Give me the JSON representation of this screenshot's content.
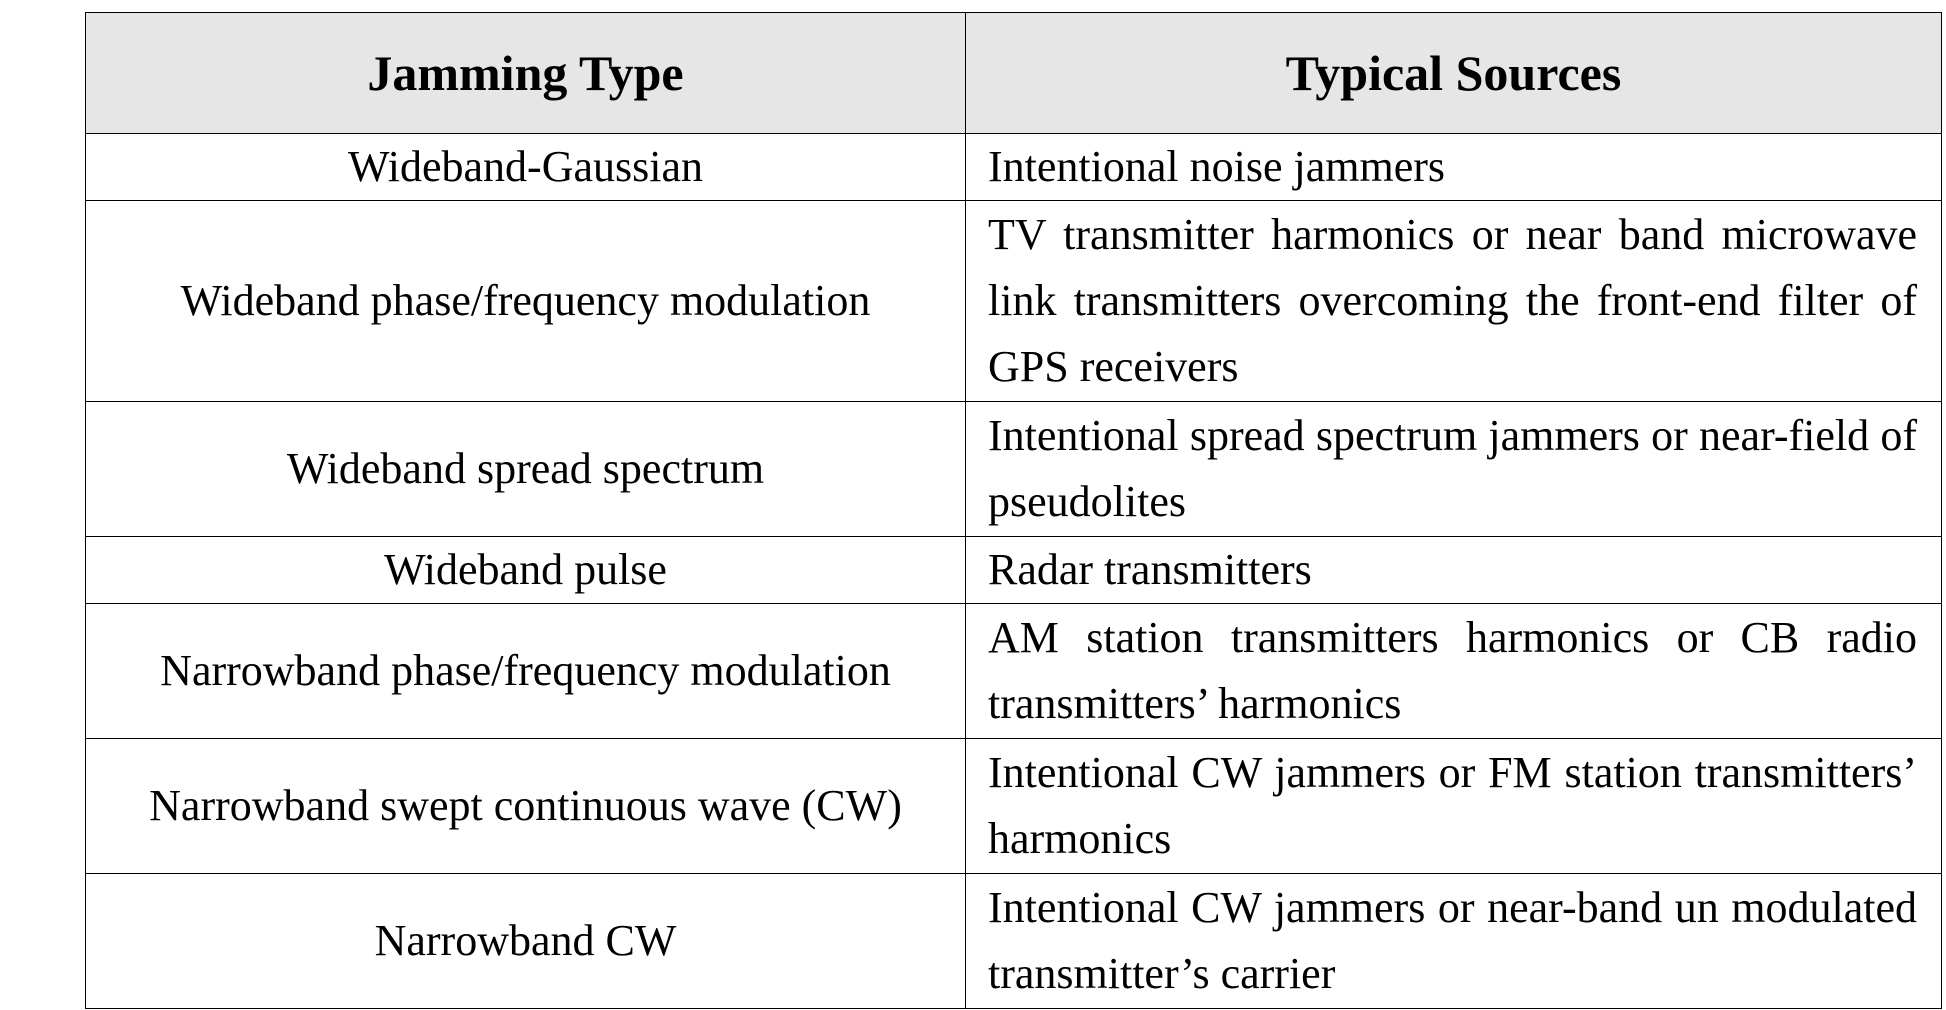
{
  "table": {
    "headers": {
      "type": "Jamming Type",
      "sources": "Typical Sources"
    },
    "rows": [
      {
        "type": "Wideband-Gaussian",
        "sources": "Intentional noise jammers"
      },
      {
        "type": "Wideband phase/frequency modulation",
        "sources": "TV transmitter harmonics or near band microwave link transmitters overcoming the front-end filter of GPS receivers"
      },
      {
        "type": "Wideband spread spectrum",
        "sources": "Intentional spread spectrum jammers or near-field of pseudolites"
      },
      {
        "type": "Wideband pulse",
        "sources": "Radar transmitters"
      },
      {
        "type": "Narrowband phase/frequency modulation",
        "sources": "AM station transmitters harmonics or CB radio transmitters’ harmonics"
      },
      {
        "type": "Narrowband swept continuous wave (CW)",
        "sources": "Intentional CW jammers or FM station transmitters’ harmonics"
      },
      {
        "type": "Narrowband CW",
        "sources": "Intentional CW jammers or near-band un modulated transmitter’s carrier"
      }
    ]
  },
  "colors": {
    "header_background": "#e6e6e6",
    "border": "#000000",
    "text": "#000000"
  }
}
